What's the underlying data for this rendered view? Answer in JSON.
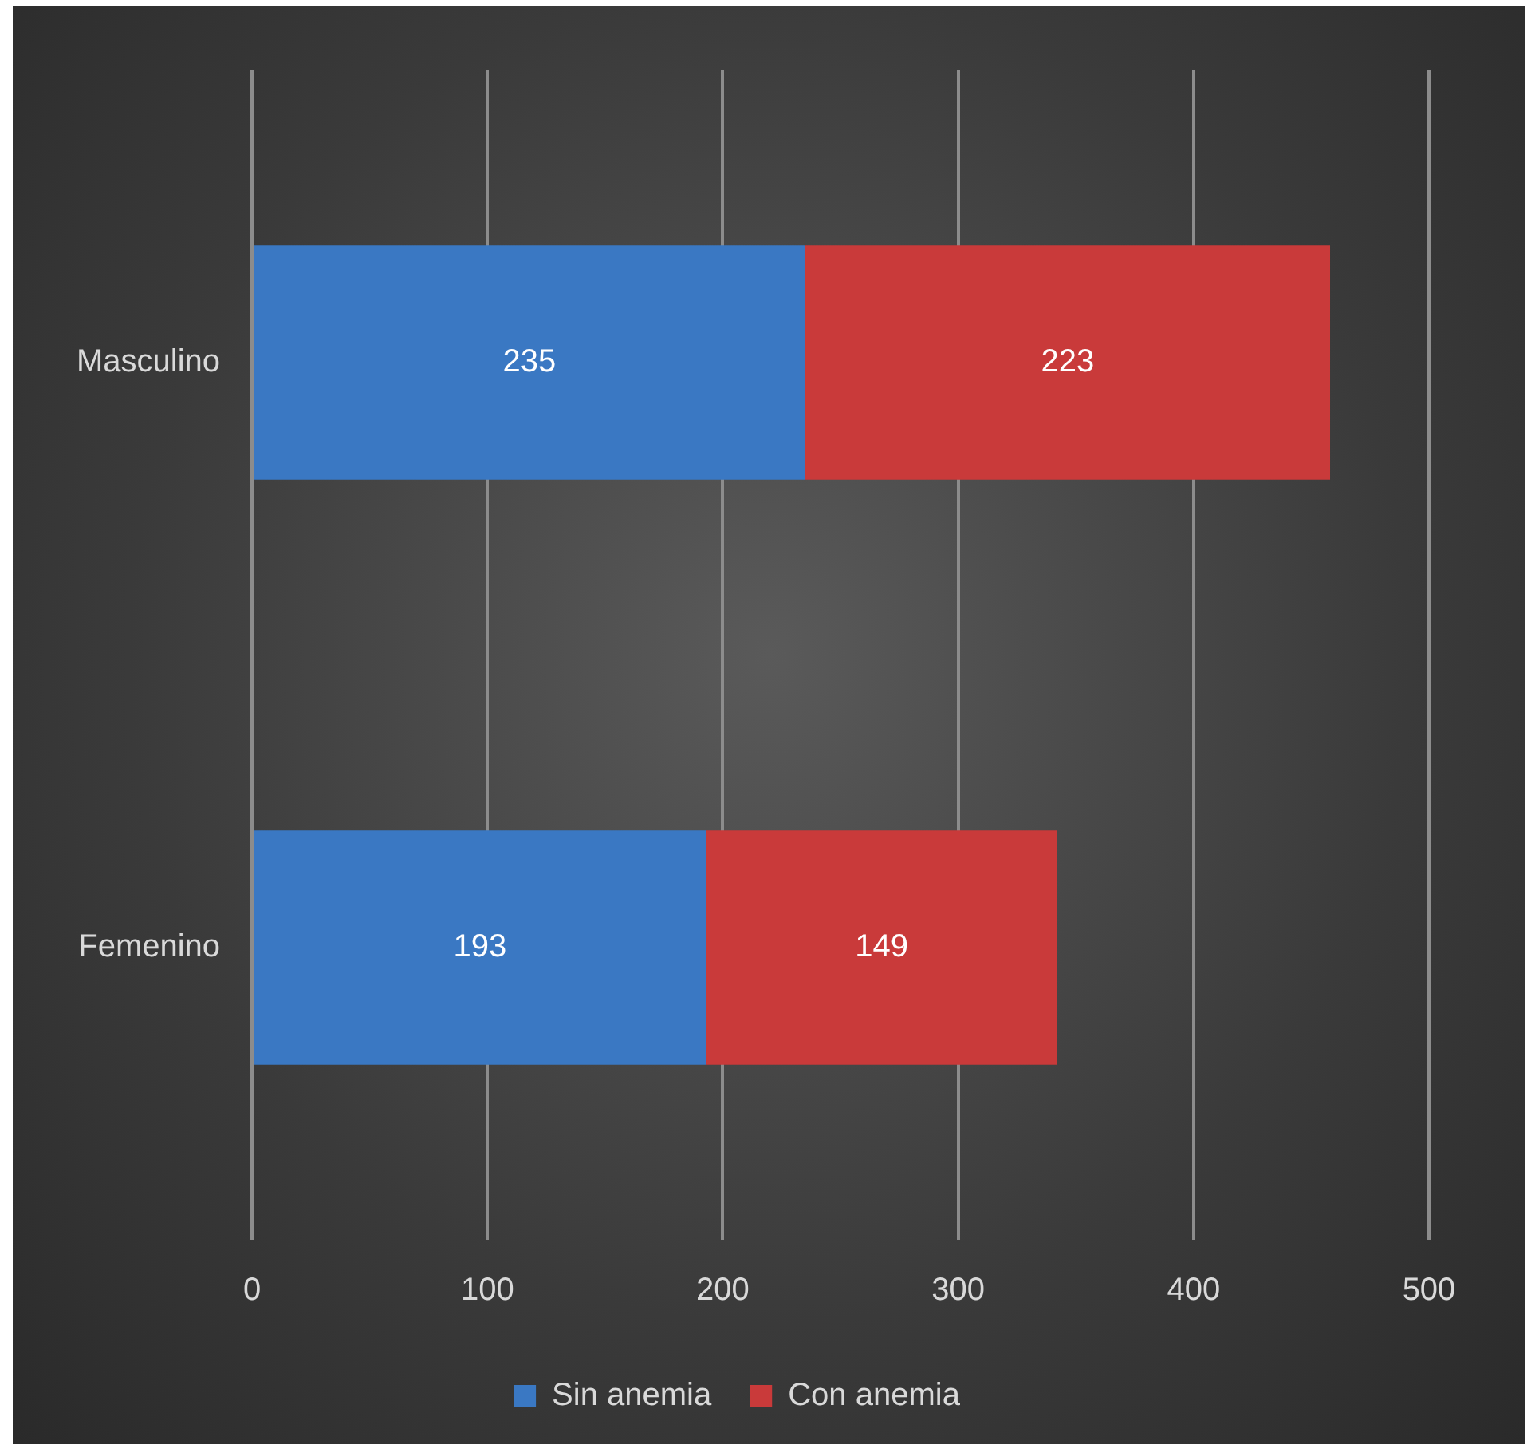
{
  "chart_data": {
    "type": "bar",
    "orientation": "horizontal",
    "stacked": true,
    "categories": [
      "Masculino",
      "Femenino"
    ],
    "series": [
      {
        "name": "Sin anemia",
        "color": "#3a78c3",
        "values": [
          235,
          193
        ]
      },
      {
        "name": "Con anemia",
        "color": "#c93a3a",
        "values": [
          223,
          149
        ]
      }
    ],
    "xlim": [
      0,
      500
    ],
    "xticks": [
      0,
      100,
      200,
      300,
      400,
      500
    ],
    "grid": "x",
    "legend": "bottom",
    "data_labels": true
  }
}
